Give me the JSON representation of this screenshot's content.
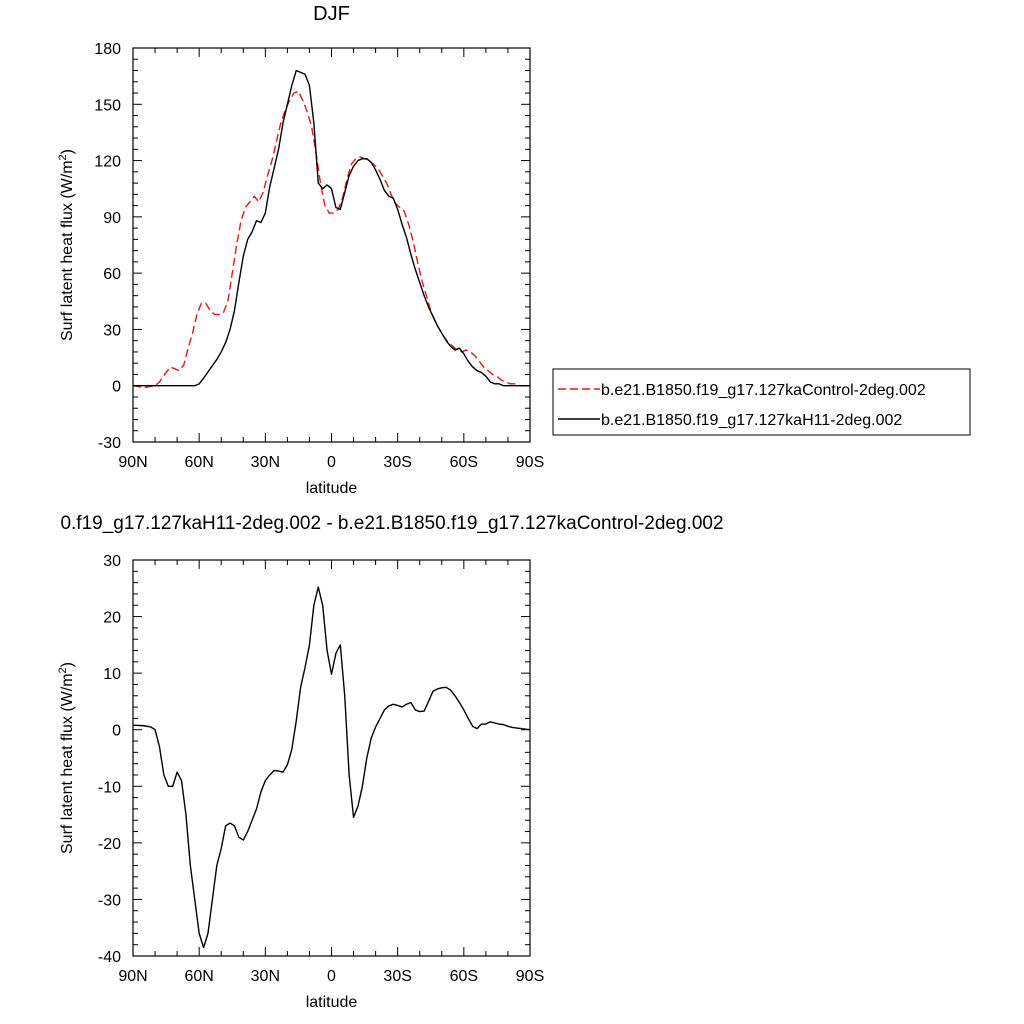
{
  "colors": {
    "control": "#e0191b",
    "h11": "#000000",
    "axis": "#000000"
  },
  "chart_data": [
    {
      "type": "line",
      "title": "DJF",
      "xlabel": "latitude",
      "ylabel": "Surf latent heat flux (W/m",
      "ylabel_sup": "2",
      "ylabel_end": ")",
      "xlim": [
        90,
        -90
      ],
      "ylim": [
        -30,
        180
      ],
      "x_ticks": [
        90,
        60,
        30,
        0,
        -30,
        -60,
        -90
      ],
      "x_tick_labels": [
        "90N",
        "60N",
        "30N",
        "0",
        "30S",
        "60S",
        "90S"
      ],
      "y_ticks": [
        -30,
        0,
        30,
        60,
        90,
        120,
        150,
        180
      ],
      "y_tick_labels": [
        "-30",
        "0",
        "30",
        "60",
        "90",
        "120",
        "150",
        "180"
      ],
      "legend_placement": "right",
      "series": [
        {
          "name": "b.e21.B1850.f19_g17.127kaControl-2deg.002",
          "style": "dashed",
          "color_key": "control",
          "x": [
            90,
            85,
            80,
            78,
            75,
            73,
            71,
            69,
            67,
            65,
            63,
            61,
            59,
            57,
            55,
            53,
            51,
            49,
            47,
            45,
            43,
            41,
            39,
            37,
            35,
            33,
            31,
            29,
            27,
            25,
            23,
            21,
            19,
            17,
            15,
            13,
            11,
            9,
            7,
            5,
            3,
            1,
            -1,
            -3,
            -5,
            -7,
            -9,
            -11,
            -13,
            -15,
            -17,
            -19,
            -21,
            -23,
            -25,
            -27,
            -29,
            -31,
            -33,
            -35,
            -37,
            -39,
            -41,
            -43,
            -45,
            -47,
            -49,
            -51,
            -53,
            -55,
            -57,
            -59,
            -61,
            -63,
            -65,
            -67,
            -69,
            -71,
            -73,
            -75,
            -77,
            -79,
            -81,
            -83,
            -85,
            -87,
            -90
          ],
          "y": [
            0,
            -1,
            0,
            2,
            7,
            10,
            9,
            8,
            11,
            20,
            28,
            38,
            44,
            44,
            40,
            38,
            38,
            39,
            45,
            60,
            75,
            88,
            95,
            98,
            101,
            98,
            103,
            112,
            120,
            130,
            140,
            147,
            152,
            156,
            157,
            152,
            146,
            138,
            124,
            108,
            96,
            92,
            92,
            94,
            100,
            110,
            118,
            121,
            122,
            121,
            120,
            118,
            116,
            112,
            108,
            102,
            97,
            95,
            93,
            86,
            77,
            66,
            56,
            48,
            40,
            34,
            30,
            26,
            23,
            21,
            19,
            18,
            19,
            18,
            16,
            13,
            10,
            8,
            6,
            5,
            3,
            2,
            1,
            1,
            0,
            0,
            0
          ]
        },
        {
          "name": "b.e21.B1850.f19_g17.127kaH11-2deg.002",
          "style": "solid",
          "color_key": "h11",
          "x": [
            90,
            85,
            80,
            75,
            70,
            65,
            62,
            60,
            58,
            55,
            52,
            50,
            48,
            46,
            44,
            42,
            40,
            38,
            36,
            34,
            32,
            30,
            28,
            26,
            24,
            22,
            20,
            18,
            16,
            14,
            12,
            10,
            8,
            6,
            4,
            2,
            0,
            -2,
            -4,
            -6,
            -8,
            -10,
            -12,
            -14,
            -16,
            -18,
            -20,
            -22,
            -24,
            -26,
            -28,
            -30,
            -32,
            -34,
            -36,
            -38,
            -40,
            -42,
            -44,
            -46,
            -48,
            -50,
            -52,
            -54,
            -56,
            -58,
            -60,
            -62,
            -64,
            -66,
            -68,
            -70,
            -72,
            -74,
            -76,
            -78,
            -80,
            -82,
            -84,
            -86,
            -88,
            -90
          ],
          "y": [
            0,
            0,
            0,
            0,
            0,
            0,
            0,
            1,
            4,
            9,
            14,
            18,
            23,
            30,
            40,
            55,
            69,
            78,
            82,
            88,
            87,
            92,
            106,
            116,
            126,
            140,
            150,
            160,
            168,
            167,
            166,
            160,
            140,
            108,
            105,
            107,
            105,
            95,
            94,
            103,
            112,
            117,
            120,
            121,
            121,
            119,
            115,
            110,
            104,
            101,
            100,
            94,
            86,
            79,
            70,
            62,
            55,
            48,
            42,
            37,
            32,
            28,
            24,
            21,
            19,
            20,
            17,
            13,
            10,
            8,
            7,
            5,
            2,
            1,
            1,
            0,
            0,
            0,
            0,
            0,
            0,
            0
          ]
        }
      ]
    },
    {
      "type": "line",
      "title": "0.f19_g17.127kaH11-2deg.002 - b.e21.B1850.f19_g17.127kaControl-2deg.002",
      "xlabel": "latitude",
      "ylabel": "Surf latent heat flux (W/m",
      "ylabel_sup": "2",
      "ylabel_end": ")",
      "xlim": [
        90,
        -90
      ],
      "ylim": [
        -40,
        30
      ],
      "x_ticks": [
        90,
        60,
        30,
        0,
        -30,
        -60,
        -90
      ],
      "x_tick_labels": [
        "90N",
        "60N",
        "30N",
        "0",
        "30S",
        "60S",
        "90S"
      ],
      "y_ticks": [
        -40,
        -30,
        -20,
        -10,
        0,
        10,
        20,
        30
      ],
      "y_tick_labels": [
        "-40",
        "-30",
        "-20",
        "-10",
        "0",
        "10",
        "20",
        "30"
      ],
      "series": [
        {
          "style": "solid",
          "color_key": "h11",
          "x": [
            90,
            85,
            82,
            80,
            78,
            76,
            74,
            72,
            70,
            68,
            66,
            64,
            62,
            60,
            58,
            56,
            54,
            52,
            50,
            48,
            46,
            44,
            42,
            40,
            38,
            36,
            34,
            32,
            30,
            28,
            26,
            24,
            22,
            20,
            18,
            16,
            14,
            12,
            10,
            8,
            6,
            4,
            2,
            0,
            -2,
            -4,
            -6,
            -8,
            -10,
            -12,
            -14,
            -16,
            -18,
            -20,
            -22,
            -24,
            -26,
            -28,
            -30,
            -32,
            -34,
            -36,
            -38,
            -40,
            -42,
            -44,
            -46,
            -48,
            -50,
            -52,
            -54,
            -56,
            -58,
            -60,
            -62,
            -64,
            -66,
            -68,
            -70,
            -72,
            -74,
            -76,
            -78,
            -80,
            -82,
            -84,
            -86,
            -88,
            -90
          ],
          "y": [
            0.8,
            0.7,
            0.5,
            0,
            -3,
            -8,
            -10,
            -10,
            -7.5,
            -9,
            -15,
            -24,
            -30,
            -36,
            -38.5,
            -36,
            -30,
            -24,
            -21,
            -17,
            -16.5,
            -17,
            -19,
            -19.5,
            -18,
            -16,
            -14,
            -11,
            -9,
            -8,
            -7.2,
            -7.3,
            -7.5,
            -6.2,
            -3.5,
            1.5,
            7.5,
            11,
            15,
            22,
            25.2,
            22,
            14,
            9.8,
            13.5,
            15,
            6,
            -8,
            -15.5,
            -13.5,
            -10,
            -5,
            -1.5,
            0.5,
            2,
            3.5,
            4.2,
            4.5,
            4.3,
            4,
            4.5,
            4.8,
            3.5,
            3.2,
            3.3,
            5,
            6.8,
            7.2,
            7.4,
            7.5,
            7,
            6,
            4.8,
            3.5,
            2,
            0.6,
            0.2,
            1,
            1,
            1.4,
            1.2,
            1,
            0.9,
            0.6,
            0.4,
            0.3,
            0.2,
            0.1,
            0
          ]
        }
      ]
    }
  ]
}
